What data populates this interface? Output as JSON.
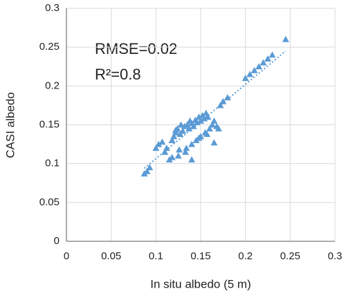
{
  "chart_data": {
    "type": "scatter",
    "x_label": "In situ albedo (5 m)",
    "y_label": "CASI albedo",
    "annotations": [
      "RMSE=0.02",
      "R²=0.8"
    ],
    "color": "#5b9bd5",
    "grid": true,
    "xlim": [
      0,
      0.3
    ],
    "ylim": [
      0,
      0.3
    ],
    "xticks": [
      0,
      0.05,
      0.1,
      0.15,
      0.2,
      0.25,
      0.3
    ],
    "yticks": [
      0,
      0.05,
      0.1,
      0.15,
      0.2,
      0.25,
      0.3
    ],
    "x": [
      0.087,
      0.09,
      0.093,
      0.1,
      0.103,
      0.107,
      0.11,
      0.112,
      0.115,
      0.118,
      0.12,
      0.122,
      0.124,
      0.125,
      0.127,
      0.128,
      0.13,
      0.132,
      0.133,
      0.135,
      0.137,
      0.138,
      0.14,
      0.14,
      0.142,
      0.144,
      0.145,
      0.146,
      0.148,
      0.15,
      0.15,
      0.152,
      0.154,
      0.155,
      0.156,
      0.158,
      0.16,
      0.163,
      0.165,
      0.168,
      0.17,
      0.172,
      0.175,
      0.18,
      0.2,
      0.205,
      0.21,
      0.215,
      0.22,
      0.225,
      0.23,
      0.245,
      0.165,
      0.14,
      0.118,
      0.126,
      0.134,
      0.148,
      0.157,
      0.122
    ],
    "y": [
      0.087,
      0.09,
      0.095,
      0.12,
      0.125,
      0.128,
      0.115,
      0.12,
      0.105,
      0.13,
      0.135,
      0.14,
      0.145,
      0.11,
      0.138,
      0.15,
      0.142,
      0.148,
      0.115,
      0.15,
      0.145,
      0.155,
      0.125,
      0.152,
      0.148,
      0.156,
      0.13,
      0.153,
      0.16,
      0.135,
      0.155,
      0.162,
      0.158,
      0.14,
      0.165,
      0.16,
      0.145,
      0.15,
      0.155,
      0.148,
      0.145,
      0.175,
      0.18,
      0.185,
      0.21,
      0.215,
      0.22,
      0.225,
      0.23,
      0.235,
      0.24,
      0.26,
      0.127,
      0.105,
      0.108,
      0.118,
      0.12,
      0.133,
      0.138,
      0.143
    ],
    "trendline": {
      "x": [
        0.087,
        0.245
      ],
      "y": [
        0.094,
        0.245
      ]
    }
  }
}
